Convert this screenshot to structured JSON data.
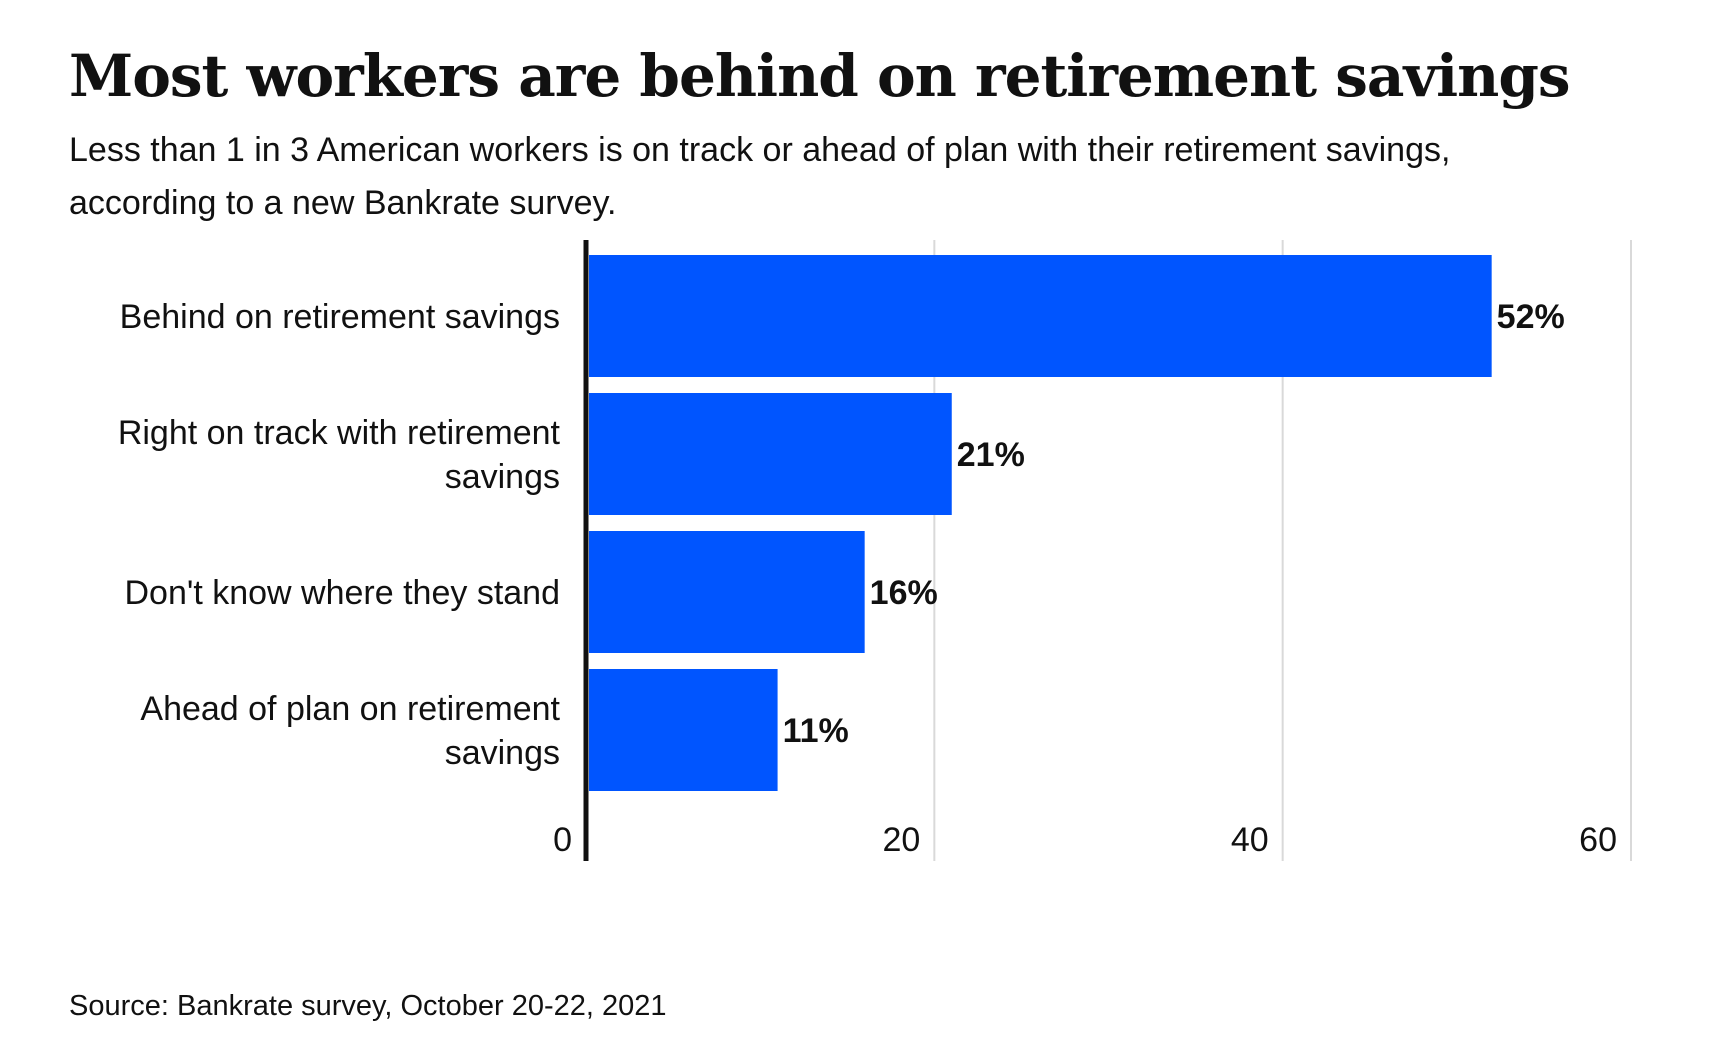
{
  "title": "Most workers are behind on retirement savings",
  "subtitle": "Less than 1 in 3 American workers is on track or ahead of plan with their retirement savings, according to a new Bankrate survey.",
  "source": "Source: Bankrate survey, October 20-22, 2021",
  "colors": {
    "bar": "#0055ff",
    "axis": "#111111",
    "grid": "#d9d9d9",
    "text": "#111111"
  },
  "chart_data": {
    "type": "bar",
    "orientation": "horizontal",
    "categories": [
      [
        "Behind on retirement savings"
      ],
      [
        "Right on track with retirement",
        "savings"
      ],
      [
        "Don't know where they stand"
      ],
      [
        "Ahead of plan on retirement",
        "savings"
      ]
    ],
    "values": [
      52,
      21,
      16,
      11
    ],
    "value_labels": [
      "52%",
      "21%",
      "16%",
      "11%"
    ],
    "xlim": [
      0,
      60
    ],
    "xticks": [
      0,
      20,
      40,
      60
    ],
    "xtick_labels": [
      "0",
      "20",
      "40",
      "60"
    ],
    "grid": true
  }
}
